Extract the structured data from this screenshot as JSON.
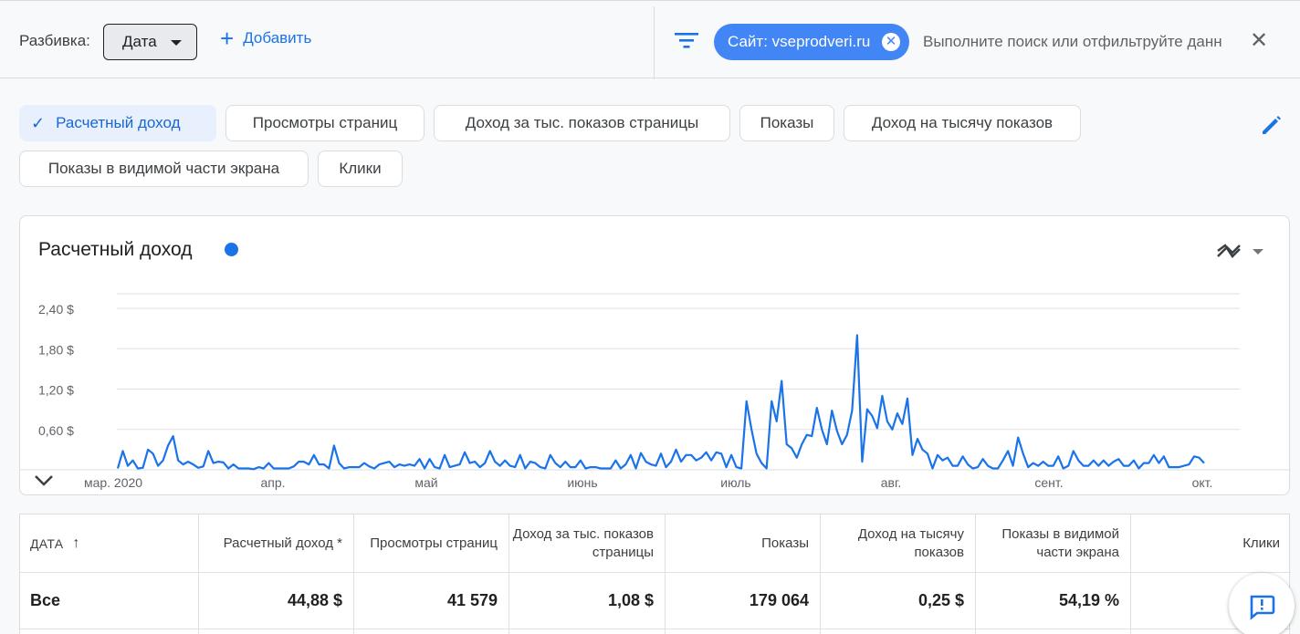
{
  "topbar": {
    "breakdown_label": "Разбивка:",
    "date_select": "Дата",
    "add_label": "Добавить",
    "site_chip": "Сайт: vseprodveri.ru",
    "search_placeholder": "Выполните поиск или отфильтруйте данн"
  },
  "metrics": [
    {
      "label": "Расчетный доход",
      "selected": true
    },
    {
      "label": "Просмотры страниц",
      "selected": false
    },
    {
      "label": "Доход за тыс. показов страницы",
      "selected": false
    },
    {
      "label": "Показы",
      "selected": false
    },
    {
      "label": "Доход на тысячу показов",
      "selected": false
    },
    {
      "label": "Показы в видимой части экрана",
      "selected": false
    },
    {
      "label": "Клики",
      "selected": false
    }
  ],
  "chart_title": "Расчетный доход",
  "colors": {
    "accent": "#1a73e8",
    "chip": "#4285f4",
    "selected_chip_bg": "#e8f0fe"
  },
  "chart_data": {
    "type": "line",
    "title": "Расчетный доход",
    "y_ticks": [
      "2,40 $",
      "1,80 $",
      "1,20 $",
      "0,60 $"
    ],
    "y_tick_values": [
      2.4,
      1.8,
      1.2,
      0.6
    ],
    "ylim": [
      0,
      2.4
    ],
    "x_ticks": [
      "мар. 2020",
      "апр.",
      "май",
      "июнь",
      "июль",
      "авг.",
      "сент.",
      "окт."
    ],
    "grid": true,
    "series": [
      {
        "values": [
          0.02,
          0.28,
          0.06,
          0.14,
          0.02,
          0.03,
          0.3,
          0.24,
          0.06,
          0.14,
          0.36,
          0.5,
          0.14,
          0.08,
          0.12,
          0.08,
          0.03,
          0.05,
          0.28,
          0.1,
          0.12,
          0.11,
          0.02,
          0.08,
          0.02,
          0.02,
          0.02,
          0.01,
          0.04,
          0.02,
          0.1,
          0.02,
          0.02,
          0.02,
          0.02,
          0.05,
          0.12,
          0.12,
          0.08,
          0.22,
          0.08,
          0.08,
          0.02,
          0.36,
          0.1,
          0.02,
          0.04,
          0.04,
          0.04,
          0.1,
          0.05,
          0.02,
          0.08,
          0.1,
          0.12,
          0.04,
          0.08,
          0.06,
          0.08,
          0.06,
          0.16,
          0.02,
          0.16,
          0.04,
          0.02,
          0.22,
          0.04,
          0.06,
          0.08,
          0.26,
          0.1,
          0.12,
          0.04,
          0.1,
          0.28,
          0.12,
          0.06,
          0.14,
          0.06,
          0.04,
          0.22,
          0.02,
          0.12,
          0.1,
          0.04,
          0.02,
          0.22,
          0.1,
          0.04,
          0.12,
          0.04,
          0.04,
          0.14,
          0.02,
          0.04,
          0.04,
          0.02,
          0.02,
          0.02,
          0.14,
          0.02,
          0.08,
          0.22,
          0.02,
          0.25,
          0.12,
          0.08,
          0.06,
          0.24,
          0.04,
          0.12,
          0.3,
          0.12,
          0.22,
          0.22,
          0.14,
          0.18,
          0.26,
          0.14,
          0.26,
          0.24,
          0.04,
          0.22,
          0.04,
          0.02,
          1.02,
          0.6,
          0.24,
          0.1,
          0.02,
          1.02,
          0.72,
          1.32,
          0.38,
          0.32,
          0.18,
          0.38,
          0.52,
          0.5,
          0.92,
          0.6,
          0.38,
          0.88,
          0.58,
          0.38,
          0.52,
          0.88,
          2.0,
          0.12,
          0.9,
          0.8,
          0.62,
          1.1,
          0.72,
          0.6,
          0.84,
          0.68,
          1.06,
          0.22,
          0.46,
          0.3,
          0.24,
          0.02,
          0.22,
          0.14,
          0.18,
          0.06,
          0.06,
          0.2,
          0.08,
          0.02,
          0.04,
          0.16,
          0.06,
          0.02,
          0.02,
          0.14,
          0.28,
          0.06,
          0.48,
          0.24,
          0.04,
          0.1,
          0.06,
          0.12,
          0.06,
          0.06,
          0.2,
          0.02,
          0.06,
          0.28,
          0.14,
          0.06,
          0.06,
          0.14,
          0.06,
          0.14,
          0.06,
          0.12,
          0.16,
          0.06,
          0.06,
          0.14,
          0.02,
          0.1,
          0.1,
          0.22,
          0.1,
          0.2,
          0.04,
          0.04,
          0.04,
          0.06,
          0.08,
          0.2,
          0.18,
          0.1
        ],
        "color": "#1a73e8"
      }
    ]
  },
  "table": {
    "headers": [
      "ДАТА",
      "Расчетный доход *",
      "Просмотры страниц",
      "Доход за тыс. показов страницы",
      "Показы",
      "Доход на тысячу показов",
      "Показы в видимой части экрана",
      "Клики"
    ],
    "total_row": [
      "Все",
      "44,88 $",
      "41 579",
      "1,08 $",
      "179 064",
      "0,25 $",
      "54,19 %",
      ""
    ]
  },
  "icons": [
    "chevron-down-icon",
    "plus-icon",
    "filter-icon",
    "close-circle-icon",
    "close-icon",
    "check-icon",
    "edit-pencil-icon",
    "trend-icon",
    "expand-chevron-icon",
    "sort-arrow-up-icon",
    "feedback-icon"
  ]
}
